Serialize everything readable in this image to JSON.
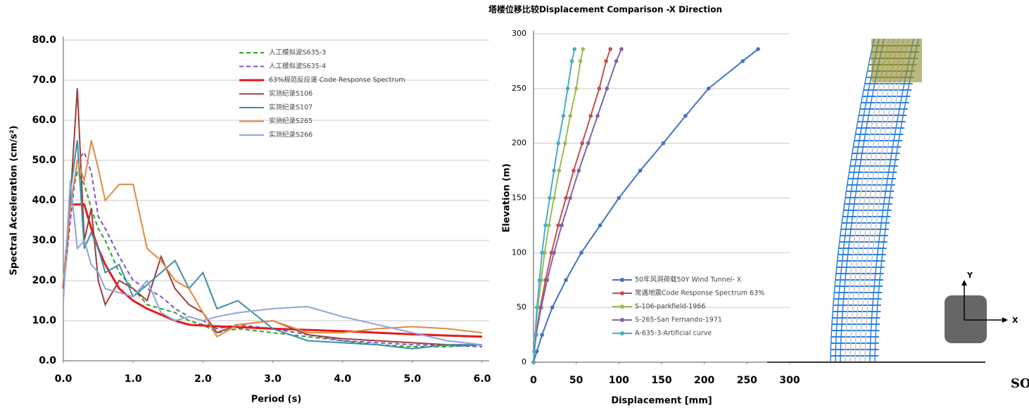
{
  "chart_data": [
    {
      "type": "line",
      "xlabel": "Period (s)",
      "ylabel": "Spectral Acceleration  (cm/s²)",
      "x": [
        0,
        0.1,
        0.2,
        0.3,
        0.4,
        0.5,
        0.6,
        0.8,
        1.0,
        1.2,
        1.4,
        1.6,
        1.8,
        2.0,
        2.2,
        2.5,
        3.0,
        3.5,
        4.0,
        4.5,
        5.0,
        5.5,
        6.0
      ],
      "xlim": [
        0,
        6.1
      ],
      "ylim": [
        0,
        80
      ],
      "grid": true,
      "xticks": [
        {
          "value": 0,
          "label": "0.0"
        },
        {
          "value": 1,
          "label": "1.0"
        },
        {
          "value": 2,
          "label": "2.0"
        },
        {
          "value": 3,
          "label": "3.0"
        },
        {
          "value": 4,
          "label": "4.0"
        },
        {
          "value": 5,
          "label": "5.0"
        },
        {
          "value": 6,
          "label": "6.0"
        }
      ],
      "yticks": [
        {
          "value": 0,
          "label": "0.0"
        },
        {
          "value": 10,
          "label": "10.0"
        },
        {
          "value": 20,
          "label": "20.0"
        },
        {
          "value": 30,
          "label": "30.0"
        },
        {
          "value": 40,
          "label": "40.0"
        },
        {
          "value": 50,
          "label": "50.0"
        },
        {
          "value": 60,
          "label": "60.0"
        },
        {
          "value": 70,
          "label": "70.0"
        },
        {
          "value": 80,
          "label": "80.0"
        }
      ],
      "series": [
        {
          "name": "人工模拟波S635-3",
          "color": "#2ca02c",
          "dashed": true,
          "values": [
            20,
            40,
            47,
            44,
            38,
            33,
            30,
            22,
            18,
            14,
            13,
            12,
            10,
            9,
            7,
            8,
            7,
            6,
            5,
            4,
            3.5,
            3.5,
            4
          ]
        },
        {
          "name": "人工模拟波S635-4",
          "color": "#7f4fc9",
          "dashed": true,
          "values": [
            18,
            35,
            50,
            52,
            47,
            36,
            33,
            26,
            20,
            18,
            16,
            13,
            11,
            10,
            8,
            9,
            8,
            6.5,
            5,
            4.5,
            4,
            3.8,
            3.5
          ]
        },
        {
          "name": "63%规范反应谱 Code Response Spectrum",
          "color": "#e8191c",
          "width": 3,
          "values": [
            18,
            39,
            39,
            39,
            33,
            28,
            24,
            18,
            15,
            13,
            11.5,
            10,
            9,
            8.8,
            8.6,
            8.4,
            8,
            7.7,
            7.4,
            7,
            6.6,
            6.3,
            6
          ]
        },
        {
          "name": "实测纪录S106",
          "color": "#9c3d3a",
          "values": [
            18,
            40,
            68,
            30,
            38,
            20,
            14,
            20,
            18,
            15,
            26,
            18,
            14,
            12,
            7,
            9,
            10,
            6.5,
            5.5,
            5,
            4.5,
            4,
            4
          ]
        },
        {
          "name": "实测纪录S107",
          "color": "#3c8ea8",
          "values": [
            16,
            42,
            55,
            28,
            32,
            28,
            22,
            24,
            16,
            19,
            22,
            25,
            18,
            22,
            13,
            15,
            8,
            5,
            4.5,
            4,
            3,
            4,
            4
          ]
        },
        {
          "name": "实测纪录S265",
          "color": "#e08a3c",
          "values": [
            20,
            38,
            50,
            45,
            55,
            48,
            40,
            44,
            44,
            28,
            25,
            20,
            18,
            12,
            6,
            9,
            10,
            7,
            7,
            8,
            8.5,
            8,
            7
          ]
        },
        {
          "name": "实测纪录S266",
          "color": "#8ea4d6",
          "values": [
            15,
            45,
            28,
            30,
            24,
            22,
            18,
            17,
            16,
            20,
            12,
            10,
            11,
            10,
            11,
            12,
            13,
            13.5,
            11,
            9,
            7,
            5,
            4
          ]
        }
      ]
    },
    {
      "type": "line-vertical",
      "title": "塔楼位移比较Displacement Comparison -X Direction",
      "xlabel": "Displacement [mm]",
      "ylabel": "Elevation (m)",
      "elevations": [
        0,
        10,
        25,
        50,
        75,
        100,
        125,
        150,
        175,
        200,
        225,
        250,
        275,
        286
      ],
      "xlim": [
        0,
        300
      ],
      "ylim": [
        0,
        300
      ],
      "grid": true,
      "xticks": [
        0,
        50,
        100,
        150,
        200,
        250,
        300
      ],
      "yticks": [
        0,
        50,
        100,
        150,
        200,
        250,
        300
      ],
      "series": [
        {
          "name": "50年风洞荷载50Y Wind Tunnel- X",
          "color": "#4472c4",
          "values": [
            0,
            4,
            10,
            22,
            38,
            56,
            78,
            100,
            125,
            152,
            178,
            205,
            245,
            263
          ]
        },
        {
          "name": "常遇地震Code Response Spectrum 63%",
          "color": "#c0504d",
          "values": [
            0,
            1,
            3,
            8,
            14,
            21,
            29,
            38,
            47,
            57,
            67,
            77,
            85,
            90
          ]
        },
        {
          "name": "S-106-parkfield-1966",
          "color": "#9bbb59",
          "values": [
            0,
            1,
            2,
            5,
            9,
            13,
            18,
            24,
            30,
            37,
            43,
            50,
            55,
            58
          ]
        },
        {
          "name": "S-265-San Fernando-1971",
          "color": "#8064a2",
          "values": [
            0,
            1,
            3,
            9,
            16,
            24,
            33,
            43,
            53,
            64,
            75,
            86,
            97,
            103
          ]
        },
        {
          "name": "A-635-3-Artificial curve",
          "color": "#4bacc6",
          "values": [
            0,
            1,
            2,
            4,
            7,
            10,
            14,
            19,
            24,
            29,
            35,
            40,
            45,
            48
          ]
        }
      ]
    }
  ],
  "building": {
    "axis_labels": [
      "Y",
      "X"
    ],
    "logo": "SO"
  }
}
